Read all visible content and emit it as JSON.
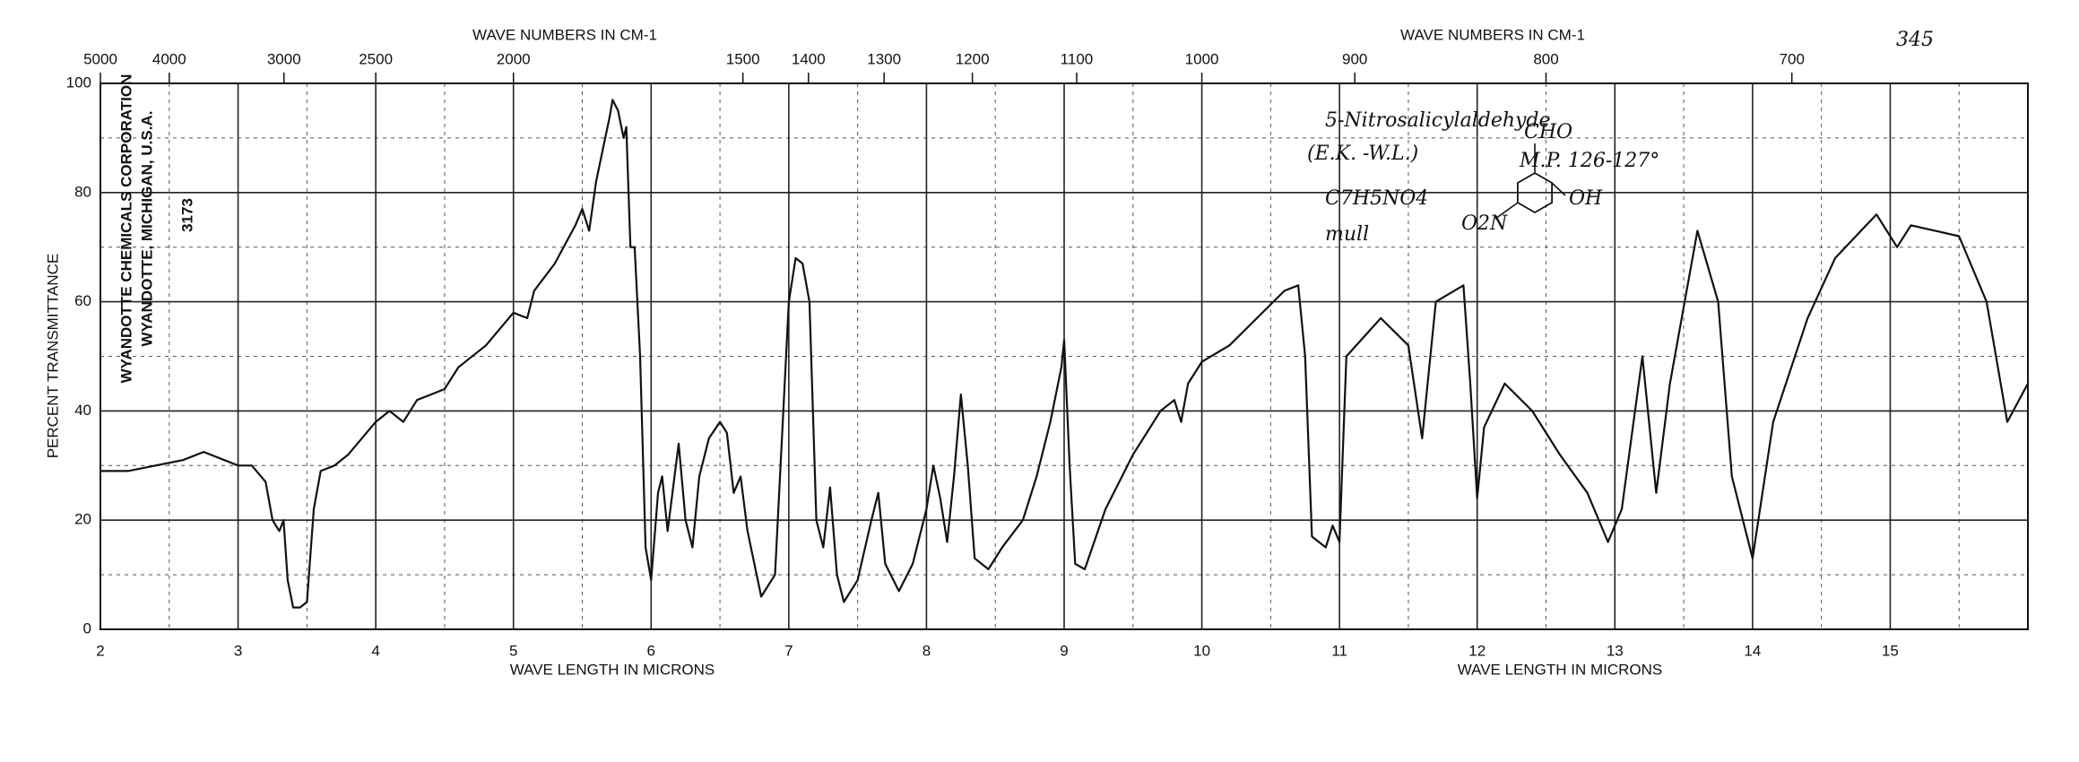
{
  "chart_data": {
    "type": "line",
    "ylabel": "PERCENT TRANSMITTANCE",
    "xlabel": [
      "WAVE LENGTH IN MICRONS",
      "WAVE LENGTH IN MICRONS"
    ],
    "x2label": [
      "WAVE NUMBERS IN CM-1",
      "WAVE NUMBERS IN CM-1"
    ],
    "annotations": [
      "345",
      "5-Nitrosalicylaldehyde",
      "(E.K. -W.L.)",
      "M.P. 126-127°",
      "C7H5NO4",
      "mull",
      "CHO",
      "OH",
      "O2N",
      "WYANDOTTE CHEMICALS CORPORATION",
      "WYANDOTTE, MICHIGAN, U.S.A.",
      "3173"
    ],
    "xlim": [
      2,
      16
    ],
    "ylim": [
      0,
      100
    ],
    "xticks": [
      2,
      3,
      4,
      5,
      6,
      7,
      8,
      9,
      10,
      11,
      12,
      13,
      14,
      15
    ],
    "yticks": [
      0,
      20,
      40,
      60,
      80,
      100
    ],
    "x2ticks": [
      5000,
      4000,
      3000,
      2500,
      2000,
      1500,
      1400,
      1300,
      1200,
      1100,
      1000,
      900,
      800,
      700
    ],
    "grid": true,
    "x": [
      2.0,
      2.2,
      2.4,
      2.6,
      2.75,
      2.9,
      3.0,
      3.1,
      3.2,
      3.25,
      3.3,
      3.33,
      3.36,
      3.4,
      3.45,
      3.5,
      3.55,
      3.6,
      3.7,
      3.8,
      4.0,
      4.1,
      4.2,
      4.3,
      4.4,
      4.5,
      4.6,
      4.8,
      5.0,
      5.1,
      5.15,
      5.3,
      5.45,
      5.5,
      5.55,
      5.6,
      5.7,
      5.72,
      5.76,
      5.8,
      5.82,
      5.85,
      5.88,
      5.92,
      5.96,
      6.0,
      6.05,
      6.08,
      6.12,
      6.2,
      6.25,
      6.3,
      6.35,
      6.42,
      6.5,
      6.55,
      6.6,
      6.65,
      6.7,
      6.8,
      6.9,
      6.95,
      7.0,
      7.05,
      7.1,
      7.15,
      7.2,
      7.25,
      7.3,
      7.35,
      7.4,
      7.5,
      7.6,
      7.65,
      7.7,
      7.8,
      7.9,
      8.0,
      8.05,
      8.1,
      8.15,
      8.2,
      8.25,
      8.3,
      8.35,
      8.45,
      8.55,
      8.7,
      8.8,
      8.9,
      8.98,
      9.0,
      9.04,
      9.08,
      9.15,
      9.3,
      9.5,
      9.7,
      9.8,
      9.85,
      9.9,
      10.0,
      10.2,
      10.4,
      10.6,
      10.7,
      10.75,
      10.8,
      10.9,
      10.95,
      11.0,
      11.05,
      11.3,
      11.5,
      11.6,
      11.7,
      11.9,
      11.95,
      12.0,
      12.05,
      12.2,
      12.4,
      12.6,
      12.8,
      12.95,
      13.05,
      13.2,
      13.3,
      13.4,
      13.6,
      13.75,
      13.85,
      14.0,
      14.15,
      14.4,
      14.6,
      14.9,
      15.05,
      15.15,
      15.5,
      15.7,
      15.85,
      16.0
    ],
    "series": [
      {
        "color": "#111111",
        "values": [
          29,
          29,
          30,
          31,
          32.5,
          31,
          30,
          30,
          27,
          20,
          18,
          20,
          9,
          4,
          4,
          5,
          22,
          29,
          30,
          32,
          38,
          40,
          38,
          42,
          43,
          44,
          48,
          52,
          58,
          57,
          62,
          67,
          74,
          77,
          73,
          82,
          94,
          97,
          95,
          90,
          92,
          70,
          70,
          50,
          15,
          9,
          25,
          28,
          18,
          34,
          20,
          15,
          28,
          35,
          38,
          36,
          25,
          28,
          18,
          6,
          10,
          35,
          60,
          68,
          67,
          60,
          20,
          15,
          26,
          10,
          5,
          9,
          20,
          25,
          12,
          7,
          12,
          22,
          30,
          24,
          16,
          28,
          43,
          30,
          13,
          11,
          15,
          20,
          28,
          38,
          48,
          53,
          30,
          12,
          11,
          22,
          32,
          40,
          42,
          38,
          45,
          49,
          52,
          57,
          62,
          63,
          50,
          17,
          15,
          19,
          16,
          50,
          57,
          52,
          35,
          60,
          63,
          45,
          24,
          37,
          45,
          40,
          32,
          25,
          16,
          22,
          50,
          25,
          45,
          73,
          60,
          28,
          13,
          38,
          57,
          68,
          76,
          70,
          74,
          72,
          60,
          38,
          45
        ]
      }
    ]
  }
}
